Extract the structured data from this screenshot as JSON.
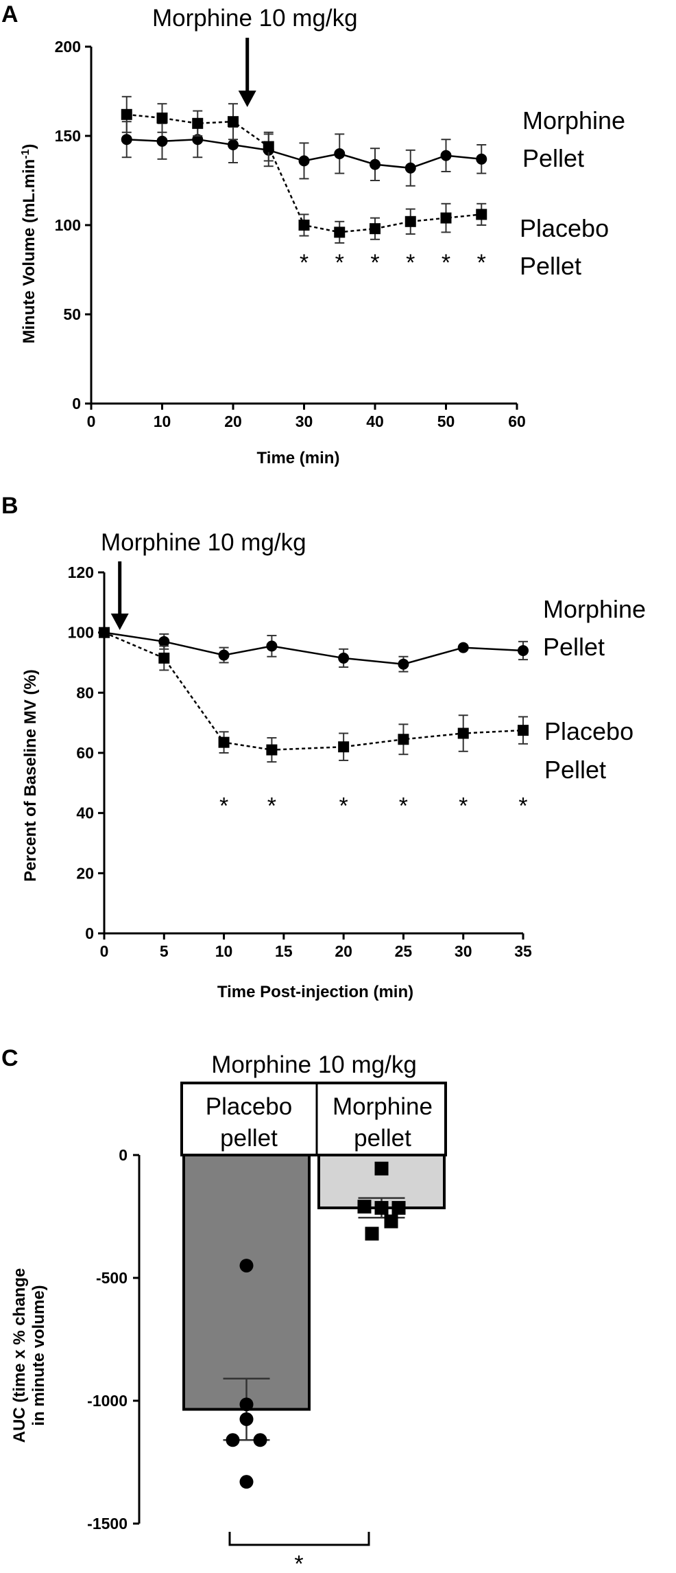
{
  "chart_data": [
    {
      "panel": "A",
      "type": "line",
      "xlabel": "Time (min)",
      "ylabel": "Minute Volume (mL.min-1)",
      "xlim": [
        0,
        60
      ],
      "ylim": [
        0,
        200
      ],
      "xticks": [
        0,
        10,
        20,
        30,
        40,
        50,
        60
      ],
      "yticks": [
        0,
        50,
        100,
        150,
        200
      ],
      "annotation": "Morphine 10 mg/kg",
      "annotation_x": 22,
      "series": [
        {
          "name": "Morphine Pellet",
          "label_lines": [
            "Morphine",
            "Pellet"
          ],
          "marker": "circle",
          "style": "solid",
          "x": [
            5,
            10,
            15,
            20,
            25,
            30,
            35,
            40,
            45,
            50,
            55
          ],
          "y": [
            148,
            147,
            148,
            145,
            142,
            136,
            140,
            134,
            132,
            139,
            137
          ],
          "err": [
            10,
            10,
            10,
            10,
            9,
            10,
            11,
            9,
            10,
            9,
            8
          ]
        },
        {
          "name": "Placebo Pellet",
          "label_lines": [
            "Placebo",
            "Pellet"
          ],
          "marker": "square",
          "style": "dashed",
          "x": [
            5,
            10,
            15,
            20,
            25,
            30,
            35,
            40,
            45,
            50,
            55
          ],
          "y": [
            162,
            160,
            157,
            158,
            144,
            100,
            96,
            98,
            102,
            104,
            106
          ],
          "err": [
            10,
            8,
            7,
            10,
            8,
            6,
            6,
            6,
            7,
            8,
            6
          ]
        }
      ],
      "significance": {
        "symbol": "*",
        "x": [
          30,
          35,
          40,
          45,
          50,
          55
        ],
        "y": 80
      }
    },
    {
      "panel": "B",
      "type": "line",
      "xlabel": "Time Post-injection (min)",
      "ylabel": "Percent of Baseline MV (%)",
      "xlim": [
        0,
        35
      ],
      "ylim": [
        0,
        120
      ],
      "xticks": [
        0,
        5,
        10,
        15,
        20,
        25,
        30,
        35
      ],
      "yticks": [
        0,
        20,
        40,
        60,
        80,
        100,
        120
      ],
      "annotation": "Morphine 10 mg/kg",
      "annotation_x": 1.3,
      "series": [
        {
          "name": "Morphine Pellet",
          "label_lines": [
            "Morphine",
            "Pellet"
          ],
          "marker": "circle",
          "style": "solid",
          "x": [
            0,
            5,
            10,
            14,
            20,
            25,
            30,
            35
          ],
          "y": [
            100,
            97,
            92.5,
            95.5,
            91.5,
            89.5,
            95,
            94
          ],
          "err": [
            0,
            2.5,
            2.5,
            3.5,
            3,
            2.5,
            0.5,
            3
          ]
        },
        {
          "name": "Placebo Pellet",
          "label_lines": [
            "Placebo",
            "Pellet"
          ],
          "marker": "square",
          "style": "dashed",
          "x": [
            0,
            5,
            10,
            14,
            20,
            25,
            30,
            35
          ],
          "y": [
            100,
            91.5,
            63.5,
            61,
            62,
            64.5,
            66.5,
            67.5
          ],
          "err": [
            0,
            4,
            3.5,
            4,
            4.5,
            5,
            6,
            4.5
          ]
        }
      ],
      "significance": {
        "symbol": "*",
        "x": [
          10,
          14,
          20,
          25,
          30,
          35
        ],
        "y": 43
      }
    },
    {
      "panel": "C",
      "type": "bar",
      "title": "Morphine 10 mg/kg",
      "ylabel_lines": [
        "AUC (time x % change",
        "in minute volume)"
      ],
      "ylim": [
        -1500,
        0
      ],
      "yticks": [
        0,
        -500,
        -1000,
        -1500
      ],
      "categories": [
        "Placebo pellet",
        "Morphine pellet"
      ],
      "category_lines": [
        [
          "Placebo",
          "pellet"
        ],
        [
          "Morphine",
          "pellet"
        ]
      ],
      "values": [
        -1035,
        -215
      ],
      "errors": [
        125,
        40
      ],
      "bar_colors": [
        "#7f7f7f",
        "#d4d4d4"
      ],
      "points": [
        {
          "marker": "circle",
          "values": [
            -450,
            -1015,
            -1075,
            -1160,
            -1160,
            -1330
          ]
        },
        {
          "marker": "square",
          "values": [
            -55,
            -210,
            -215,
            -215,
            -270,
            -320
          ]
        }
      ],
      "significance": "*"
    }
  ]
}
